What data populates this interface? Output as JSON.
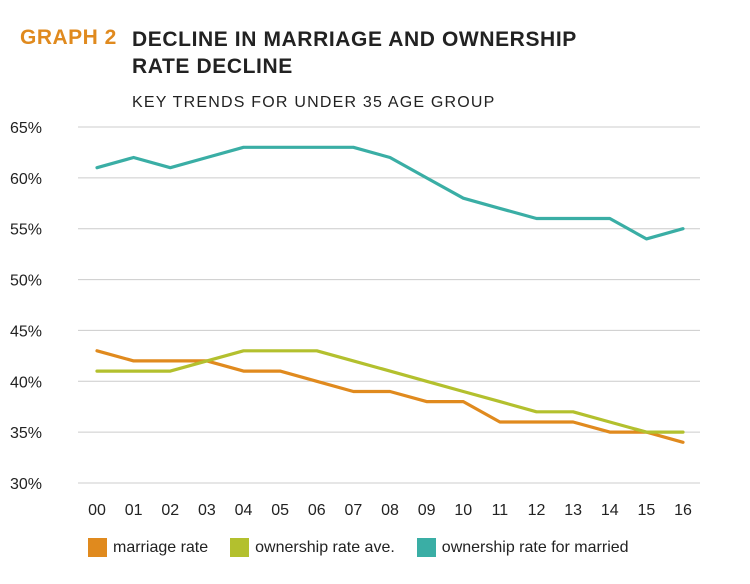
{
  "header": {
    "graph_label": "GRAPH 2",
    "title_line1": "DECLINE IN MARRIAGE AND OWNERSHIP",
    "title_line2": "RATE DECLINE",
    "subtitle": "KEY TRENDS FOR UNDER 35 AGE GROUP"
  },
  "colors": {
    "marriage": "#e08a1e",
    "ownership_ave": "#b3c02e",
    "ownership_married": "#3aaea5",
    "grid": "#cccccc",
    "accent": "#e08a1e"
  },
  "chart_data": {
    "type": "line",
    "title": "DECLINE IN MARRIAGE AND OWNERSHIP RATE DECLINE",
    "subtitle": "KEY TRENDS FOR UNDER 35 AGE GROUP",
    "xlabel": "",
    "ylabel": "",
    "categories": [
      "00",
      "01",
      "02",
      "03",
      "04",
      "05",
      "06",
      "07",
      "08",
      "09",
      "10",
      "11",
      "12",
      "13",
      "14",
      "15",
      "16"
    ],
    "ylim": [
      30,
      65
    ],
    "yticks": [
      30,
      35,
      40,
      45,
      50,
      55,
      60,
      65
    ],
    "ytick_labels": [
      "30%",
      "35%",
      "40%",
      "45%",
      "50%",
      "55%",
      "60%",
      "65%"
    ],
    "grid": true,
    "legend_position": "bottom",
    "series": [
      {
        "name": "marriage rate",
        "color_key": "marriage",
        "values": [
          43,
          42,
          42,
          42,
          41,
          41,
          40,
          39,
          39,
          38,
          38,
          36,
          36,
          36,
          35,
          35,
          34
        ]
      },
      {
        "name": "ownership rate ave.",
        "color_key": "ownership_ave",
        "values": [
          41,
          41,
          41,
          42,
          43,
          43,
          43,
          42,
          41,
          40,
          39,
          38,
          37,
          37,
          36,
          35,
          35
        ]
      },
      {
        "name": "ownership rate for married",
        "color_key": "ownership_married",
        "values": [
          61,
          62,
          61,
          62,
          63,
          63,
          63,
          63,
          62,
          60,
          58,
          57,
          56,
          56,
          56,
          54,
          55
        ]
      }
    ]
  }
}
